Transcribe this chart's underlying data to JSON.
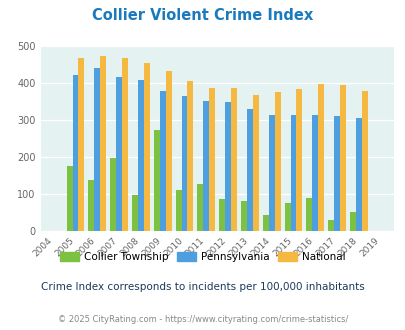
{
  "title": "Collier Violent Crime Index",
  "title_color": "#1a7abf",
  "years": [
    2004,
    2005,
    2006,
    2007,
    2008,
    2009,
    2010,
    2011,
    2012,
    2013,
    2014,
    2015,
    2016,
    2017,
    2018,
    2019
  ],
  "collier": [
    0,
    175,
    138,
    198,
    97,
    273,
    110,
    128,
    87,
    82,
    43,
    77,
    90,
    30,
    52,
    0
  ],
  "pennsylvania": [
    0,
    423,
    440,
    417,
    408,
    380,
    366,
    353,
    348,
    329,
    314,
    314,
    314,
    311,
    305,
    0
  ],
  "national": [
    0,
    469,
    473,
    467,
    455,
    432,
    405,
    387,
    387,
    368,
    376,
    383,
    397,
    394,
    380,
    0
  ],
  "collier_color": "#7dc142",
  "pennsylvania_color": "#4d9fe0",
  "national_color": "#f5b942",
  "bg_color": "#e5f2f2",
  "ylim": [
    0,
    500
  ],
  "yticks": [
    0,
    100,
    200,
    300,
    400,
    500
  ],
  "legend_labels": [
    "Collier Township",
    "Pennsylvania",
    "National"
  ],
  "subtitle": "Crime Index corresponds to incidents per 100,000 inhabitants",
  "footer": "© 2025 CityRating.com - https://www.cityrating.com/crime-statistics/",
  "subtitle_color": "#1a3a5c",
  "footer_color": "#888888"
}
